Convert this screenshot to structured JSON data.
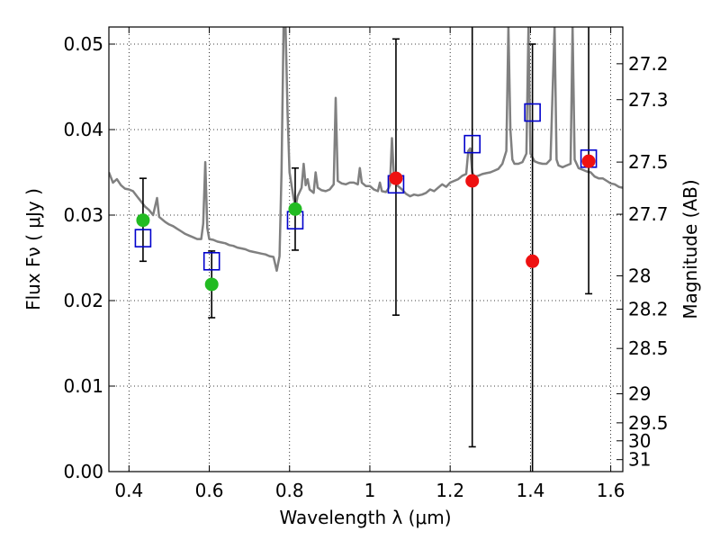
{
  "chart_data": {
    "type": "scatter",
    "xlabel": "Wavelength  λ (μm)",
    "ylabel": "Flux  Fν  ( μJy )",
    "ylabel_right": "Magnitude (AB)",
    "xlim": [
      0.35,
      1.63
    ],
    "ylim": [
      0.0,
      0.052
    ],
    "x_ticks": [
      0.4,
      0.6,
      0.8,
      1.0,
      1.2,
      1.4,
      1.6
    ],
    "x_tick_labels": [
      "0.4",
      "0.6",
      "0.8",
      "1",
      "1.2",
      "1.4",
      "1.6"
    ],
    "y_ticks": [
      0.0,
      0.01,
      0.02,
      0.03,
      0.04,
      0.05
    ],
    "y_tick_labels": [
      "0.00",
      "0.01",
      "0.02",
      "0.03",
      "0.04",
      "0.05"
    ],
    "right_ticks": [
      {
        "label": "27.2",
        "flux": 0.0477
      },
      {
        "label": "27.3",
        "flux": 0.0435
      },
      {
        "label": "27.5",
        "flux": 0.0362
      },
      {
        "label": "27.7",
        "flux": 0.0301
      },
      {
        "label": "28",
        "flux": 0.0229
      },
      {
        "label": "28.2",
        "flux": 0.019
      },
      {
        "label": "28.5",
        "flux": 0.0144
      },
      {
        "label": "29",
        "flux": 0.0091
      },
      {
        "label": "29.5",
        "flux": 0.0057
      },
      {
        "label": "30",
        "flux": 0.0036
      },
      {
        "label": "31",
        "flux": 0.0014
      }
    ],
    "grid": true,
    "colors": {
      "spectrum": "#808080",
      "model": "#0000cc",
      "green": "#22bb22",
      "red": "#ee1111",
      "errorbar": "#000000"
    },
    "spectrum": [
      [
        0.35,
        0.035
      ],
      [
        0.36,
        0.0338
      ],
      [
        0.37,
        0.0342
      ],
      [
        0.38,
        0.0335
      ],
      [
        0.39,
        0.0331
      ],
      [
        0.4,
        0.033
      ],
      [
        0.41,
        0.0328
      ],
      [
        0.42,
        0.0322
      ],
      [
        0.43,
        0.0316
      ],
      [
        0.44,
        0.031
      ],
      [
        0.45,
        0.0306
      ],
      [
        0.46,
        0.03
      ],
      [
        0.47,
        0.032
      ],
      [
        0.475,
        0.0298
      ],
      [
        0.48,
        0.0296
      ],
      [
        0.49,
        0.0292
      ],
      [
        0.5,
        0.0289
      ],
      [
        0.51,
        0.0287
      ],
      [
        0.52,
        0.0284
      ],
      [
        0.53,
        0.0281
      ],
      [
        0.54,
        0.0278
      ],
      [
        0.55,
        0.0276
      ],
      [
        0.56,
        0.0274
      ],
      [
        0.57,
        0.0272
      ],
      [
        0.58,
        0.0272
      ],
      [
        0.585,
        0.029
      ],
      [
        0.59,
        0.0362
      ],
      [
        0.595,
        0.0285
      ],
      [
        0.6,
        0.0272
      ],
      [
        0.61,
        0.0271
      ],
      [
        0.62,
        0.0269
      ],
      [
        0.63,
        0.0268
      ],
      [
        0.64,
        0.0267
      ],
      [
        0.65,
        0.0265
      ],
      [
        0.66,
        0.0264
      ],
      [
        0.67,
        0.0262
      ],
      [
        0.68,
        0.0261
      ],
      [
        0.69,
        0.026
      ],
      [
        0.7,
        0.0258
      ],
      [
        0.71,
        0.0257
      ],
      [
        0.72,
        0.0256
      ],
      [
        0.73,
        0.0255
      ],
      [
        0.74,
        0.0254
      ],
      [
        0.75,
        0.0252
      ],
      [
        0.76,
        0.0251
      ],
      [
        0.768,
        0.0235
      ],
      [
        0.775,
        0.0252
      ],
      [
        0.78,
        0.035
      ],
      [
        0.785,
        0.052
      ],
      [
        0.79,
        0.052
      ],
      [
        0.795,
        0.042
      ],
      [
        0.8,
        0.035
      ],
      [
        0.81,
        0.032
      ],
      [
        0.815,
        0.031
      ],
      [
        0.82,
        0.0322
      ],
      [
        0.83,
        0.0332
      ],
      [
        0.835,
        0.036
      ],
      [
        0.84,
        0.0335
      ],
      [
        0.845,
        0.0342
      ],
      [
        0.85,
        0.033
      ],
      [
        0.86,
        0.0326
      ],
      [
        0.865,
        0.035
      ],
      [
        0.87,
        0.0332
      ],
      [
        0.88,
        0.0329
      ],
      [
        0.89,
        0.0328
      ],
      [
        0.9,
        0.033
      ],
      [
        0.91,
        0.0336
      ],
      [
        0.915,
        0.0437
      ],
      [
        0.92,
        0.034
      ],
      [
        0.93,
        0.0337
      ],
      [
        0.94,
        0.0336
      ],
      [
        0.95,
        0.0338
      ],
      [
        0.96,
        0.0338
      ],
      [
        0.97,
        0.0336
      ],
      [
        0.975,
        0.0355
      ],
      [
        0.98,
        0.0338
      ],
      [
        0.99,
        0.0334
      ],
      [
        1.0,
        0.0334
      ],
      [
        1.01,
        0.033
      ],
      [
        1.02,
        0.0328
      ],
      [
        1.025,
        0.0338
      ],
      [
        1.03,
        0.0328
      ],
      [
        1.04,
        0.0327
      ],
      [
        1.045,
        0.033
      ],
      [
        1.05,
        0.0335
      ],
      [
        1.055,
        0.039
      ],
      [
        1.06,
        0.0345
      ],
      [
        1.07,
        0.0334
      ],
      [
        1.08,
        0.033
      ],
      [
        1.09,
        0.0325
      ],
      [
        1.1,
        0.0322
      ],
      [
        1.11,
        0.0324
      ],
      [
        1.12,
        0.0323
      ],
      [
        1.13,
        0.0324
      ],
      [
        1.14,
        0.0326
      ],
      [
        1.15,
        0.033
      ],
      [
        1.16,
        0.0328
      ],
      [
        1.17,
        0.0332
      ],
      [
        1.18,
        0.0336
      ],
      [
        1.19,
        0.0333
      ],
      [
        1.2,
        0.0338
      ],
      [
        1.21,
        0.034
      ],
      [
        1.22,
        0.0342
      ],
      [
        1.23,
        0.0346
      ],
      [
        1.24,
        0.0348
      ],
      [
        1.245,
        0.0375
      ],
      [
        1.25,
        0.0378
      ],
      [
        1.255,
        0.035
      ],
      [
        1.26,
        0.0345
      ],
      [
        1.27,
        0.0346
      ],
      [
        1.28,
        0.0348
      ],
      [
        1.29,
        0.0349
      ],
      [
        1.3,
        0.035
      ],
      [
        1.31,
        0.0352
      ],
      [
        1.32,
        0.0354
      ],
      [
        1.33,
        0.036
      ],
      [
        1.34,
        0.0375
      ],
      [
        1.345,
        0.052
      ],
      [
        1.35,
        0.04
      ],
      [
        1.355,
        0.0365
      ],
      [
        1.36,
        0.036
      ],
      [
        1.37,
        0.036
      ],
      [
        1.38,
        0.0362
      ],
      [
        1.39,
        0.0372
      ],
      [
        1.395,
        0.052
      ],
      [
        1.4,
        0.0372
      ],
      [
        1.41,
        0.0363
      ],
      [
        1.42,
        0.0361
      ],
      [
        1.43,
        0.036
      ],
      [
        1.44,
        0.036
      ],
      [
        1.45,
        0.0365
      ],
      [
        1.46,
        0.052
      ],
      [
        1.465,
        0.0365
      ],
      [
        1.47,
        0.0358
      ],
      [
        1.48,
        0.0356
      ],
      [
        1.49,
        0.0358
      ],
      [
        1.5,
        0.036
      ],
      [
        1.505,
        0.052
      ],
      [
        1.51,
        0.0365
      ],
      [
        1.52,
        0.0355
      ],
      [
        1.53,
        0.0353
      ],
      [
        1.54,
        0.0351
      ],
      [
        1.55,
        0.035
      ],
      [
        1.56,
        0.0345
      ],
      [
        1.57,
        0.0343
      ],
      [
        1.58,
        0.0343
      ],
      [
        1.59,
        0.034
      ],
      [
        1.6,
        0.0337
      ],
      [
        1.61,
        0.0336
      ],
      [
        1.62,
        0.0333
      ],
      [
        1.63,
        0.0332
      ]
    ],
    "model_points": [
      {
        "x": 0.435,
        "y": 0.0273
      },
      {
        "x": 0.606,
        "y": 0.0246
      },
      {
        "x": 0.814,
        "y": 0.0294
      },
      {
        "x": 1.065,
        "y": 0.0336
      },
      {
        "x": 1.255,
        "y": 0.0383
      },
      {
        "x": 1.405,
        "y": 0.042
      },
      {
        "x": 1.545,
        "y": 0.0366
      }
    ],
    "observed_points": [
      {
        "x": 0.435,
        "y": 0.0294,
        "err_low": 0.0246,
        "err_high": 0.0343,
        "color": "green"
      },
      {
        "x": 0.606,
        "y": 0.0219,
        "err_low": 0.018,
        "err_high": 0.0258,
        "color": "green"
      },
      {
        "x": 0.814,
        "y": 0.0307,
        "err_low": 0.0259,
        "err_high": 0.0355,
        "color": "green"
      },
      {
        "x": 1.065,
        "y": 0.0343,
        "err_low": 0.0183,
        "err_high": 0.0506,
        "color": "red"
      },
      {
        "x": 1.255,
        "y": 0.034,
        "err_low": 0.0029,
        "err_high": 0.054,
        "color": "red"
      },
      {
        "x": 1.405,
        "y": 0.0246,
        "err_low": -0.001,
        "err_high": 0.05,
        "color": "red"
      },
      {
        "x": 1.545,
        "y": 0.0363,
        "err_low": 0.0208,
        "err_high": 0.054,
        "color": "red"
      }
    ]
  }
}
